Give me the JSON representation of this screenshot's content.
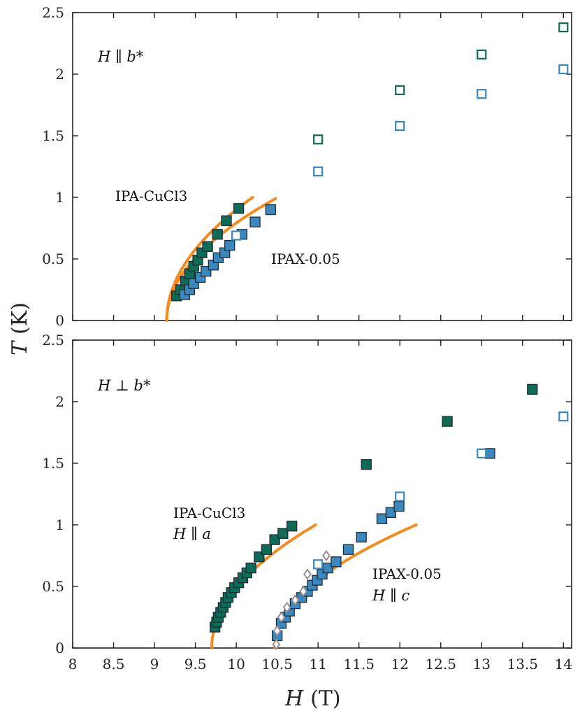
{
  "chart_data": {
    "type": "scatter",
    "shared_xlabel_symbol": "H",
    "shared_xlabel_unit": "(T)",
    "shared_ylabel_symbol": "T",
    "shared_ylabel_unit": "(K)",
    "xlim": [
      8,
      14.1
    ],
    "xticks": [
      "8",
      "8.5",
      "9",
      "9.5",
      "10",
      "10.5",
      "11",
      "11.5",
      "12",
      "12.5",
      "13",
      "13.5",
      "14"
    ],
    "colors": {
      "green": "#0e6b55",
      "blue": "#3a88bd",
      "orange": "#f58a1f",
      "diamond": "#9a8f94"
    },
    "panels": [
      {
        "id": "top",
        "ylim": [
          0,
          2.5
        ],
        "yticks": [
          "0",
          "0.5",
          "1",
          "1.5",
          "2",
          "2.5"
        ],
        "field_label": "H ∥ b*",
        "annotations": [
          {
            "id": "ipa",
            "text": "IPA-CuCl3"
          },
          {
            "id": "ipax",
            "text": "IPAX-0.05"
          }
        ],
        "series": [
          {
            "name": "IPA-CuCl3 filled",
            "color": "green",
            "filled": true,
            "marker": "square",
            "points": [
              [
                9.27,
                0.2
              ],
              [
                9.32,
                0.25
              ],
              [
                9.38,
                0.32
              ],
              [
                9.43,
                0.38
              ],
              [
                9.48,
                0.44
              ],
              [
                9.53,
                0.49
              ],
              [
                9.58,
                0.55
              ],
              [
                9.65,
                0.6
              ],
              [
                9.77,
                0.7
              ],
              [
                9.88,
                0.81
              ],
              [
                10.03,
                0.91
              ]
            ]
          },
          {
            "name": "IPAX-0.05 filled",
            "color": "blue",
            "filled": true,
            "marker": "square",
            "points": [
              [
                9.37,
                0.21
              ],
              [
                9.43,
                0.25
              ],
              [
                9.48,
                0.3
              ],
              [
                9.56,
                0.35
              ],
              [
                9.63,
                0.4
              ],
              [
                9.72,
                0.45
              ],
              [
                9.78,
                0.51
              ],
              [
                9.86,
                0.55
              ],
              [
                9.92,
                0.61
              ],
              [
                10.07,
                0.7
              ],
              [
                10.23,
                0.8
              ],
              [
                10.42,
                0.9
              ]
            ]
          },
          {
            "name": "IPA-CuCl3 open",
            "color": "green",
            "filled": false,
            "marker": "square",
            "points": [
              [
                11,
                1.47
              ],
              [
                12,
                1.87
              ],
              [
                13,
                2.16
              ],
              [
                14,
                2.38
              ]
            ]
          },
          {
            "name": "IPAX-0.05 open",
            "color": "blue",
            "filled": false,
            "marker": "square",
            "points": [
              [
                10,
                0.69
              ],
              [
                11,
                1.21
              ],
              [
                12,
                1.58
              ],
              [
                13,
                1.84
              ],
              [
                14,
                2.04
              ]
            ]
          }
        ],
        "fits": [
          {
            "color": "orange",
            "hc": 9.15,
            "x_end": 10.2,
            "y_end": 1.0
          },
          {
            "color": "orange",
            "hc": 9.15,
            "x_end": 10.48,
            "y_end": 0.99
          }
        ]
      },
      {
        "id": "bottom",
        "ylim": [
          0,
          2.5
        ],
        "yticks": [
          "0",
          "0.5",
          "1",
          "1.5",
          "2",
          "2.5"
        ],
        "field_label": "H ⊥ b*",
        "annotations": [
          {
            "id": "ipa",
            "text": "IPA-CuCl3",
            "sub": "H ∥ a"
          },
          {
            "id": "ipax",
            "text": "IPAX-0.05",
            "sub": "H ∥ c"
          }
        ],
        "series": [
          {
            "name": "IPA-CuCl3 filled",
            "color": "green",
            "filled": true,
            "marker": "square",
            "points": [
              [
                9.74,
                0.17
              ],
              [
                9.76,
                0.21
              ],
              [
                9.78,
                0.25
              ],
              [
                9.81,
                0.29
              ],
              [
                9.84,
                0.33
              ],
              [
                9.87,
                0.37
              ],
              [
                9.9,
                0.41
              ],
              [
                9.94,
                0.45
              ],
              [
                9.98,
                0.49
              ],
              [
                10.03,
                0.53
              ],
              [
                10.08,
                0.57
              ],
              [
                10.13,
                0.61
              ],
              [
                10.18,
                0.65
              ],
              [
                10.28,
                0.74
              ],
              [
                10.37,
                0.8
              ],
              [
                10.47,
                0.88
              ],
              [
                10.57,
                0.93
              ],
              [
                10.68,
                0.99
              ],
              [
                11.59,
                1.49
              ],
              [
                12.58,
                1.84
              ],
              [
                13.62,
                2.1
              ]
            ]
          },
          {
            "name": "IPAX-0.05 filled",
            "color": "blue",
            "filled": true,
            "marker": "square",
            "points": [
              [
                10.5,
                0.1
              ],
              [
                10.55,
                0.2
              ],
              [
                10.6,
                0.25
              ],
              [
                10.65,
                0.3
              ],
              [
                10.72,
                0.36
              ],
              [
                10.8,
                0.41
              ],
              [
                10.87,
                0.46
              ],
              [
                10.93,
                0.51
              ],
              [
                10.99,
                0.55
              ],
              [
                11.05,
                0.6
              ],
              [
                11.12,
                0.65
              ],
              [
                11.22,
                0.7
              ],
              [
                11.37,
                0.8
              ],
              [
                11.53,
                0.9
              ],
              [
                11.78,
                1.05
              ],
              [
                11.89,
                1.1
              ],
              [
                11.99,
                1.15
              ],
              [
                13.1,
                1.58
              ]
            ]
          },
          {
            "name": "IPAX-0.05 open",
            "color": "blue",
            "filled": false,
            "marker": "square",
            "points": [
              [
                11,
                0.68
              ],
              [
                12,
                1.23
              ],
              [
                13,
                1.58
              ],
              [
                14,
                1.88
              ]
            ]
          },
          {
            "name": "diamonds",
            "color": "diamond",
            "filled": false,
            "marker": "diamond",
            "points": [
              [
                10.49,
                0.03
              ],
              [
                10.5,
                0.14
              ],
              [
                10.55,
                0.25
              ],
              [
                10.62,
                0.33
              ],
              [
                10.72,
                0.39
              ],
              [
                10.82,
                0.46
              ],
              [
                10.87,
                0.6
              ],
              [
                11.1,
                0.75
              ]
            ]
          }
        ],
        "fits": [
          {
            "color": "orange",
            "hc": 9.7,
            "x_end": 10.97,
            "y_end": 1.0
          },
          {
            "color": "orange",
            "hc": 10.47,
            "x_end": 12.2,
            "y_end": 1.0
          }
        ]
      }
    ]
  }
}
